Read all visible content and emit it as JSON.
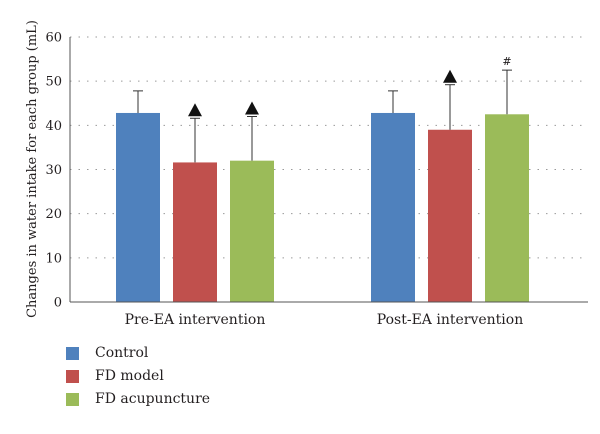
{
  "chart_data": {
    "type": "bar",
    "ylabel": "Changes in water intake for each group (mL)",
    "xlabel": "",
    "ylim": [
      0,
      60
    ],
    "yticks": [
      0,
      10,
      20,
      30,
      40,
      50,
      60
    ],
    "grid": "horizontal dotted",
    "legend_position": "bottom-left",
    "categories": [
      "Pre-EA intervention",
      "Post-EA intervention"
    ],
    "series": [
      {
        "name": "Control",
        "color": "#4f81bd",
        "values": [
          42.8,
          42.8
        ],
        "errors": [
          5.0,
          5.0
        ],
        "markers": [
          "",
          ""
        ]
      },
      {
        "name": "FD model",
        "color": "#c0504d",
        "values": [
          31.6,
          39.0
        ],
        "errors": [
          10.0,
          10.2
        ],
        "markers": [
          "▲",
          "▲"
        ]
      },
      {
        "name": "FD acupuncture",
        "color": "#9bbb59",
        "values": [
          32.0,
          42.5
        ],
        "errors": [
          10.0,
          10.0
        ],
        "markers": [
          "▲",
          "#"
        ]
      }
    ]
  }
}
